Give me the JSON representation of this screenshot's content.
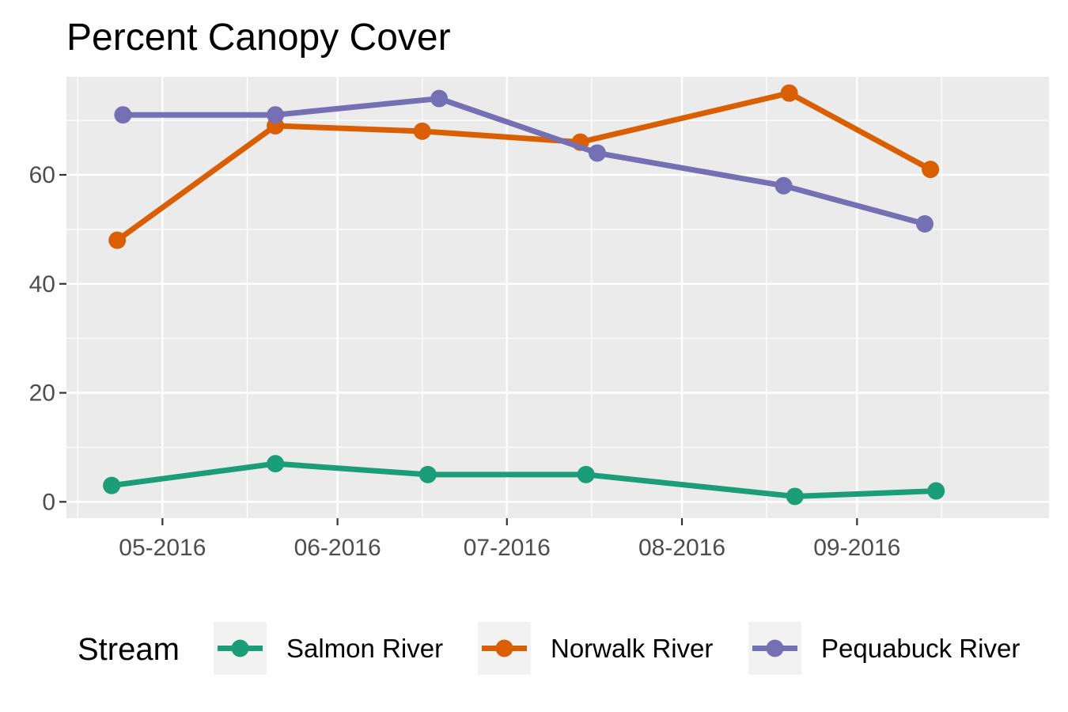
{
  "chart_data": {
    "type": "line",
    "title": "Percent Canopy Cover",
    "xlabel": "",
    "ylabel": "",
    "x_ticks": [
      {
        "date": "2016-05-01",
        "label": "05-2016"
      },
      {
        "date": "2016-06-01",
        "label": "06-2016"
      },
      {
        "date": "2016-07-01",
        "label": "07-2016"
      },
      {
        "date": "2016-08-01",
        "label": "08-2016"
      },
      {
        "date": "2016-09-01",
        "label": "09-2016"
      }
    ],
    "y_ticks": [
      0,
      20,
      40,
      60
    ],
    "xlim": [
      "2016-04-14",
      "2016-10-05"
    ],
    "ylim": [
      -3,
      78
    ],
    "grid": true,
    "legend": {
      "title": "Stream",
      "position": "bottom"
    },
    "series": [
      {
        "name": "Salmon River",
        "color": "#1b9e77",
        "points": [
          {
            "x": "2016-04-22",
            "y": 3
          },
          {
            "x": "2016-05-21",
            "y": 7
          },
          {
            "x": "2016-06-17",
            "y": 5
          },
          {
            "x": "2016-07-15",
            "y": 5
          },
          {
            "x": "2016-08-21",
            "y": 1
          },
          {
            "x": "2016-09-15",
            "y": 2
          }
        ]
      },
      {
        "name": "Norwalk River",
        "color": "#d95f02",
        "points": [
          {
            "x": "2016-04-23",
            "y": 48
          },
          {
            "x": "2016-05-21",
            "y": 69
          },
          {
            "x": "2016-06-16",
            "y": 68
          },
          {
            "x": "2016-07-14",
            "y": 66
          },
          {
            "x": "2016-08-20",
            "y": 75
          },
          {
            "x": "2016-09-14",
            "y": 61
          }
        ]
      },
      {
        "name": "Pequabuck River",
        "color": "#7570b3",
        "points": [
          {
            "x": "2016-04-24",
            "y": 71
          },
          {
            "x": "2016-05-21",
            "y": 71
          },
          {
            "x": "2016-06-19",
            "y": 74
          },
          {
            "x": "2016-07-17",
            "y": 64
          },
          {
            "x": "2016-08-19",
            "y": 58
          },
          {
            "x": "2016-09-13",
            "y": 51
          }
        ]
      }
    ]
  }
}
